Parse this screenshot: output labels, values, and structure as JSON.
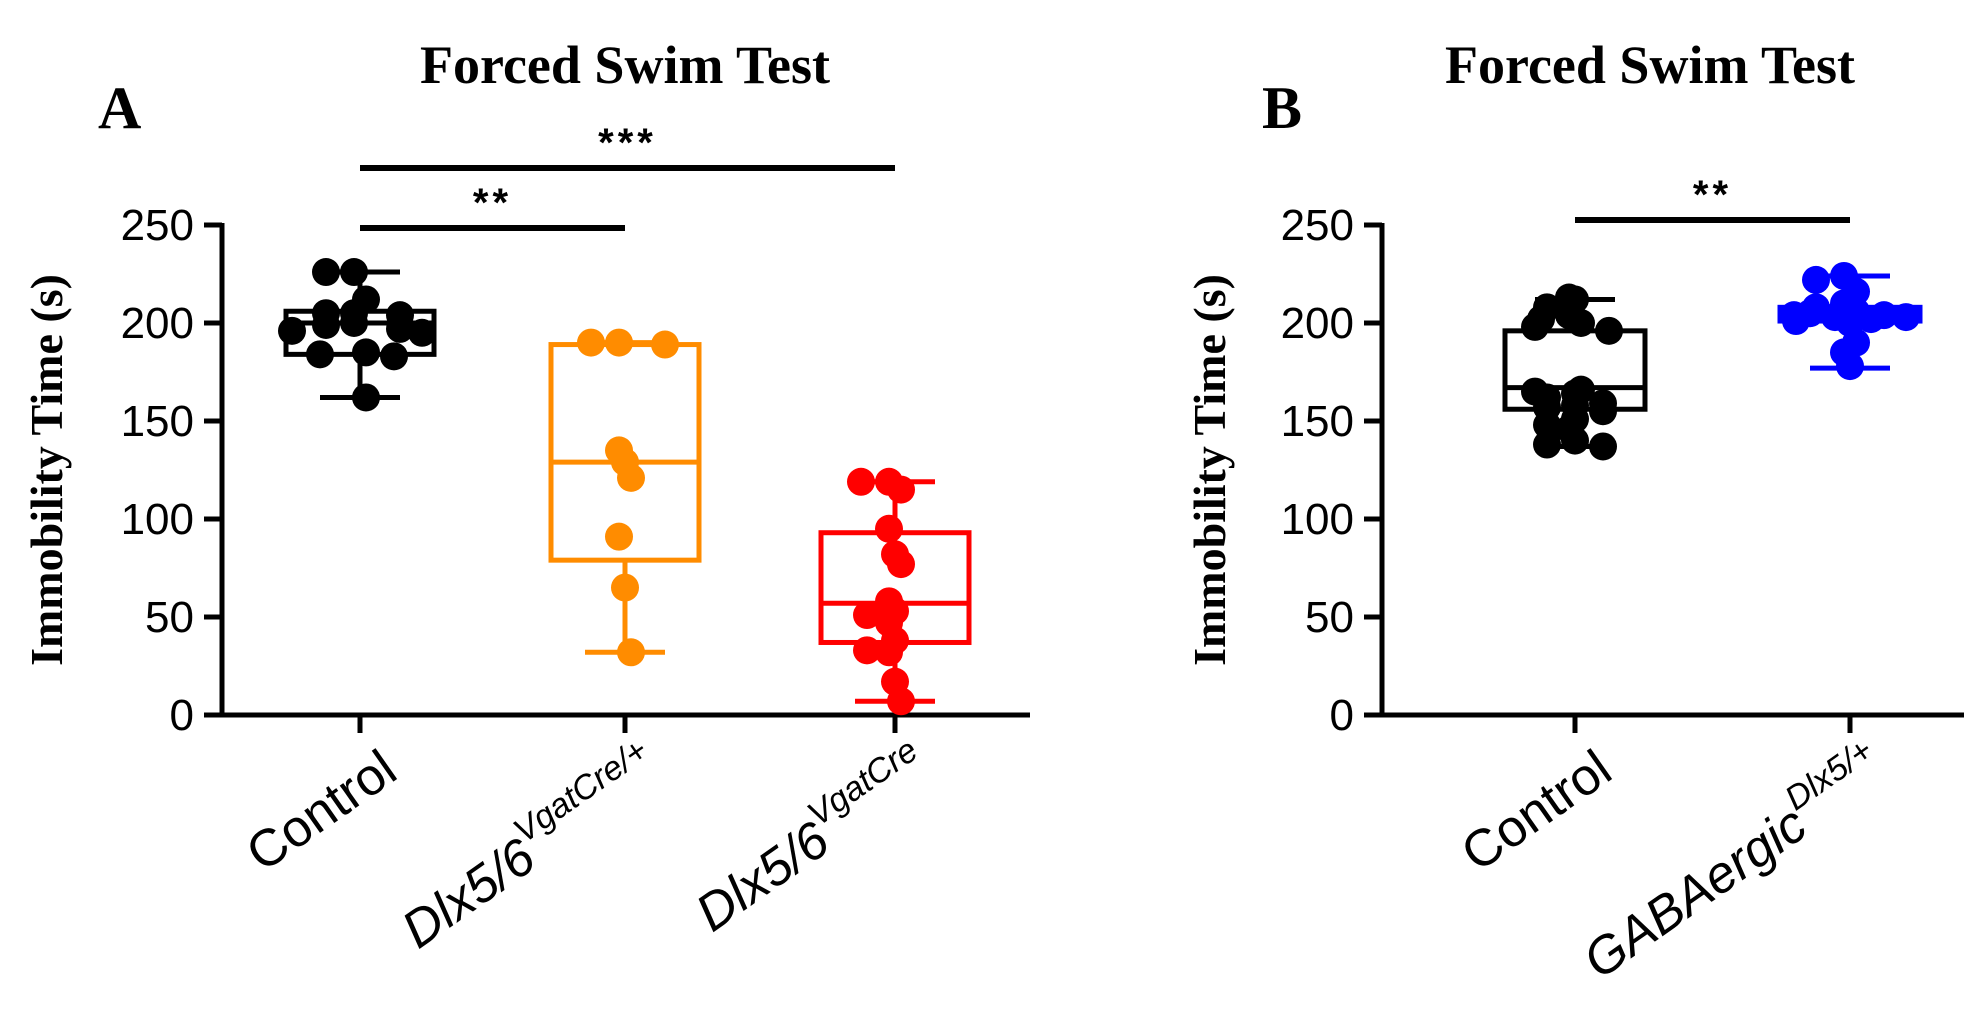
{
  "chart_data": [
    {
      "type": "box",
      "panel": "A",
      "title": "Forced Swim Test",
      "ylabel": "Immobility Time (s)",
      "ylim": [
        0,
        250
      ],
      "yticks": [
        0,
        50,
        100,
        150,
        200,
        250
      ],
      "categories": [
        {
          "main": "Control",
          "italic": false,
          "sup": ""
        },
        {
          "main": "Dlx5/6",
          "italic": true,
          "sup": "VgatCre/+"
        },
        {
          "main": "Dlx5/6",
          "italic": true,
          "sup": "VgatCre"
        }
      ],
      "series": [
        {
          "name": "Control",
          "color": "#000000",
          "box": {
            "min": 162,
            "q1": 184,
            "median": 200,
            "q3": 206,
            "max": 226
          },
          "points": [
            226,
            226,
            212,
            205,
            205,
            204,
            200,
            199,
            197,
            196,
            195,
            185,
            184,
            183,
            162
          ]
        },
        {
          "name": "Dlx5/6 VgatCre/+",
          "color": "#ff8c00",
          "box": {
            "min": 32,
            "q1": 79,
            "median": 129,
            "q3": 189,
            "max": 190
          },
          "points": [
            190,
            190,
            189,
            135,
            129,
            121,
            91,
            65,
            32
          ]
        },
        {
          "name": "Dlx5/6 VgatCre",
          "color": "#ff0000",
          "box": {
            "min": 7,
            "q1": 37,
            "median": 57,
            "q3": 93,
            "max": 119
          },
          "points": [
            119,
            119,
            115,
            95,
            82,
            77,
            58,
            53,
            51,
            47,
            38,
            33,
            32,
            17,
            7
          ]
        }
      ],
      "significance": [
        {
          "from": 0,
          "to": 1,
          "label": "**"
        },
        {
          "from": 0,
          "to": 2,
          "label": "***"
        }
      ]
    },
    {
      "type": "box",
      "panel": "B",
      "title": "Forced Swim Test",
      "ylabel": "Immobility Time (s)",
      "ylim": [
        0,
        250
      ],
      "yticks": [
        0,
        50,
        100,
        150,
        200,
        250
      ],
      "categories": [
        {
          "main": "Control",
          "italic": false,
          "sup": ""
        },
        {
          "main": "GABAergic",
          "italic": true,
          "sup": "Dlx5/+"
        }
      ],
      "series": [
        {
          "name": "Control",
          "color": "#000000",
          "box": {
            "min": 137,
            "q1": 156,
            "median": 167,
            "q3": 196,
            "max": 212
          },
          "points": [
            213,
            212,
            208,
            204,
            202,
            200,
            198,
            196,
            166,
            165,
            164,
            162,
            159,
            158,
            157,
            155,
            151,
            148,
            146,
            140,
            138,
            137
          ]
        },
        {
          "name": "GABAergic Dlx5/+",
          "color": "#0000ff",
          "box": {
            "min": 177,
            "q1": 201,
            "median": 204,
            "q3": 208,
            "max": 224
          },
          "points": [
            224,
            222,
            216,
            210,
            208,
            206,
            205,
            204,
            204,
            203,
            203,
            202,
            201,
            200,
            190,
            185,
            178
          ]
        }
      ],
      "significance": [
        {
          "from": 0,
          "to": 1,
          "label": "**"
        }
      ]
    }
  ]
}
